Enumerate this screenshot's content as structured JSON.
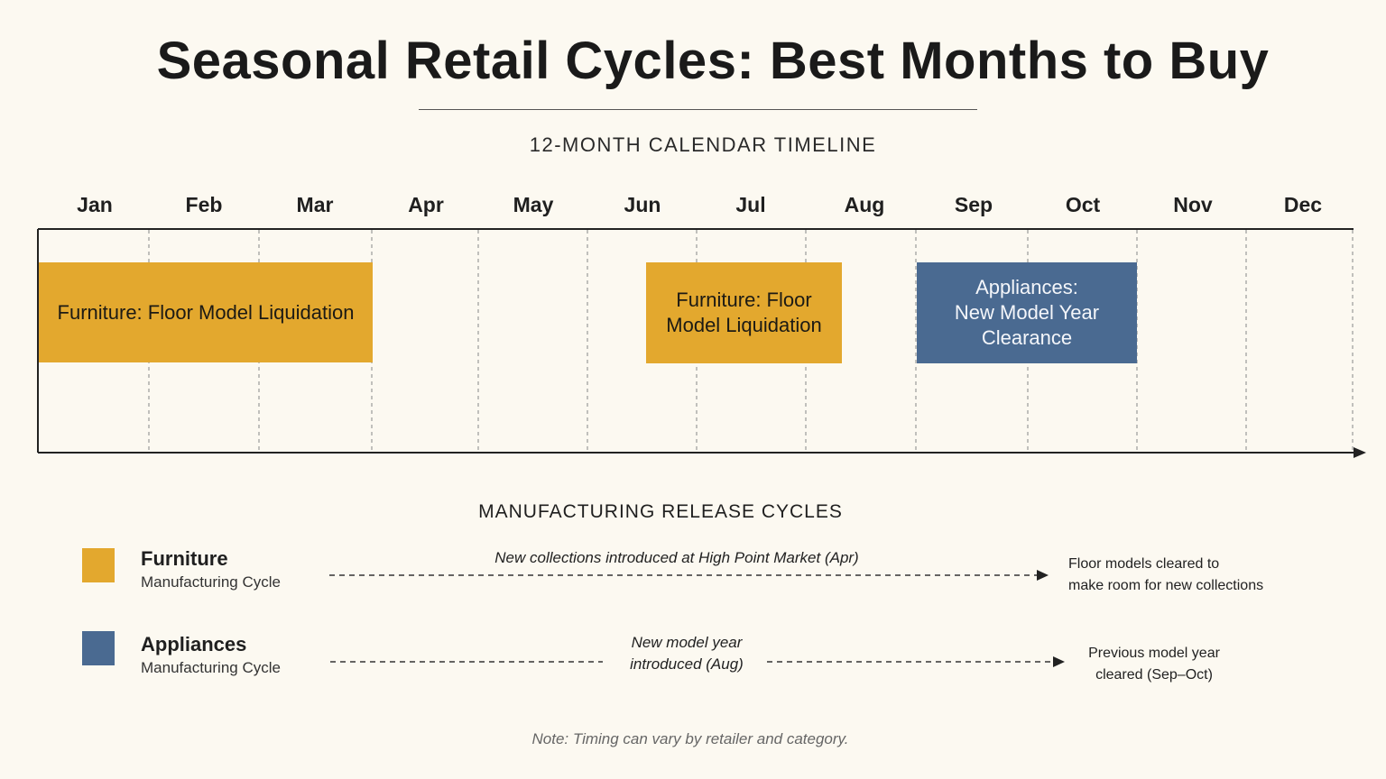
{
  "title": "Seasonal Retail Cycles: Best Months to Buy",
  "timeline_heading": "12-MONTH CALENDAR TIMELINE",
  "months": [
    "Jan",
    "Feb",
    "Mar",
    "Apr",
    "May",
    "Jun",
    "Jul",
    "Aug",
    "Sep",
    "Oct",
    "Nov",
    "Dec"
  ],
  "bars": [
    {
      "category": "furniture",
      "text": "Furniture: Floor Model Liquidation",
      "start_month": "Jan",
      "end_month": "Mar",
      "color": "#e3a82e"
    },
    {
      "category": "furniture",
      "text_line1": "Furniture: Floor",
      "text_line2": "Model Liquidation",
      "start_month": "Jun",
      "end_month": "Jul",
      "color": "#e3a82e"
    },
    {
      "category": "appliances",
      "text_line1": "Appliances:",
      "text_line2": "New Model Year Clearance",
      "start_month": "Sep",
      "end_month": "Oct",
      "color": "#4a6a91"
    }
  ],
  "legend_heading": "MANUFACTURING RELEASE CYCLES",
  "legend": [
    {
      "name": "Furniture",
      "sub": "Manufacturing Cycle",
      "color": "#e3a82e",
      "note": "New collections introduced at High Point Market (Apr)",
      "outcome_line1": "Floor models cleared to",
      "outcome_line2": "make room for new collections"
    },
    {
      "name": "Appliances",
      "sub": "Manufacturing Cycle",
      "color": "#4a6a91",
      "note_line1": "New model year",
      "note_line2": "introduced (Aug)",
      "outcome_line1": "Previous model year",
      "outcome_line2": "cleared (Sep–Oct)"
    }
  ],
  "footnote": "Note: Timing can vary by retailer and category."
}
